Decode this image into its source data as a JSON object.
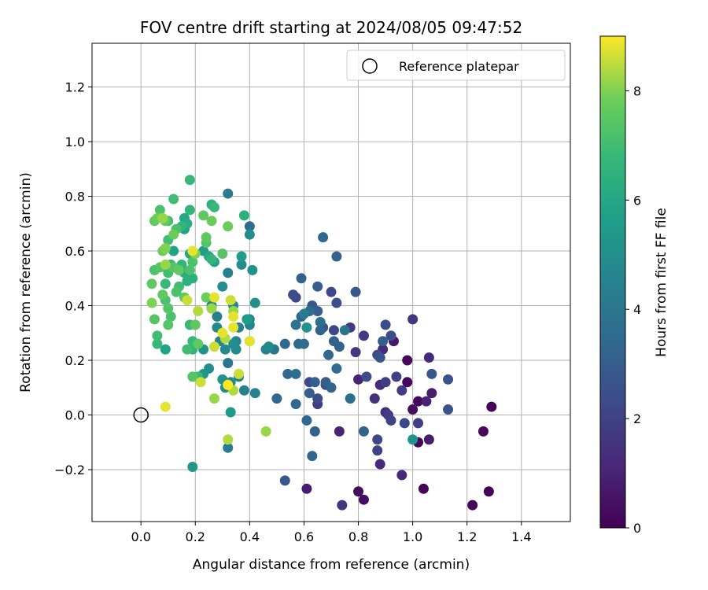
{
  "chart_data": {
    "type": "scatter",
    "title": "FOV centre drift starting at 2024/08/05 09:47:52",
    "xlabel": "Angular distance from reference (arcmin)",
    "ylabel": "Rotation from reference (arcmin)",
    "xlim": [
      -0.18,
      1.58
    ],
    "ylim": [
      -0.39,
      1.36
    ],
    "xticks": [
      0.0,
      0.2,
      0.4,
      0.6,
      0.8,
      1.0,
      1.2,
      1.4
    ],
    "xtick_labels": [
      "0.0",
      "0.2",
      "0.4",
      "0.6",
      "0.8",
      "1.0",
      "1.2",
      "1.4"
    ],
    "yticks": [
      -0.2,
      0.0,
      0.2,
      0.4,
      0.6,
      0.8,
      1.0,
      1.2
    ],
    "ytick_labels": [
      "−0.2",
      "0.0",
      "0.2",
      "0.4",
      "0.6",
      "0.8",
      "1.0",
      "1.2"
    ],
    "grid": true,
    "legend": {
      "position": "top-right",
      "label": "Reference platepar"
    },
    "reference_point": [
      0.0,
      0.0
    ],
    "colorbar": {
      "label": "Hours from first FF file",
      "range": [
        0,
        9
      ],
      "ticks": [
        0,
        2,
        4,
        6,
        8
      ],
      "tick_labels": [
        "0",
        "2",
        "4",
        "6",
        "8"
      ],
      "colormap": "viridis"
    },
    "points": [
      [
        1.29,
        0.03,
        0.1
      ],
      [
        1.28,
        -0.28,
        0.1
      ],
      [
        1.26,
        -0.06,
        0.2
      ],
      [
        1.22,
        -0.33,
        0.2
      ],
      [
        1.13,
        0.13,
        2.6
      ],
      [
        1.13,
        0.02,
        2.6
      ],
      [
        1.07,
        0.15,
        2.8
      ],
      [
        1.07,
        0.08,
        0.8
      ],
      [
        1.06,
        0.21,
        1.2
      ],
      [
        1.06,
        -0.09,
        0.8
      ],
      [
        1.05,
        0.05,
        1.0
      ],
      [
        1.04,
        -0.27,
        0.1
      ],
      [
        1.02,
        0.05,
        0.2
      ],
      [
        1.02,
        -0.1,
        0.2
      ],
      [
        1.02,
        -0.03,
        1.8
      ],
      [
        1.0,
        0.35,
        1.6
      ],
      [
        1.0,
        0.02,
        0.4
      ],
      [
        1.0,
        -0.09,
        5.2
      ],
      [
        0.98,
        0.2,
        0.2
      ],
      [
        0.98,
        0.12,
        0.2
      ],
      [
        0.97,
        -0.03,
        2.2
      ],
      [
        0.96,
        0.09,
        1.8
      ],
      [
        0.96,
        -0.22,
        1.2
      ],
      [
        0.94,
        0.14,
        2.0
      ],
      [
        0.93,
        0.27,
        0.6
      ],
      [
        0.92,
        0.29,
        2.4
      ],
      [
        0.92,
        -0.02,
        2.0
      ],
      [
        0.91,
        0.0,
        1.8
      ],
      [
        0.9,
        0.12,
        1.8
      ],
      [
        0.9,
        0.01,
        1.4
      ],
      [
        0.9,
        0.33,
        2.4
      ],
      [
        0.89,
        0.27,
        3.0
      ],
      [
        0.89,
        0.24,
        1.2
      ],
      [
        0.88,
        0.21,
        2.6
      ],
      [
        0.88,
        0.11,
        1.2
      ],
      [
        0.88,
        -0.18,
        1.2
      ],
      [
        0.87,
        -0.09,
        2.2
      ],
      [
        0.87,
        -0.13,
        2.0
      ],
      [
        0.87,
        0.22,
        2.4
      ],
      [
        0.86,
        0.06,
        1.4
      ],
      [
        0.83,
        0.14,
        2.4
      ],
      [
        0.82,
        0.29,
        1.6
      ],
      [
        0.82,
        -0.06,
        3.2
      ],
      [
        0.82,
        -0.31,
        0.4
      ],
      [
        0.8,
        -0.28,
        0.4
      ],
      [
        0.8,
        0.13,
        1.0
      ],
      [
        0.79,
        0.45,
        2.8
      ],
      [
        0.79,
        0.23,
        1.6
      ],
      [
        0.77,
        0.32,
        1.8
      ],
      [
        0.77,
        0.06,
        3.6
      ],
      [
        0.75,
        0.31,
        4.0
      ],
      [
        0.74,
        -0.33,
        1.6
      ],
      [
        0.73,
        -0.06,
        1.0
      ],
      [
        0.73,
        0.25,
        3.2
      ],
      [
        0.72,
        0.41,
        2.4
      ],
      [
        0.72,
        0.58,
        3.2
      ],
      [
        0.72,
        0.17,
        3.6
      ],
      [
        0.71,
        0.27,
        3.2
      ],
      [
        0.71,
        0.31,
        2.2
      ],
      [
        0.7,
        0.45,
        2.2
      ],
      [
        0.7,
        0.1,
        3.2
      ],
      [
        0.69,
        0.22,
        3.4
      ],
      [
        0.68,
        0.12,
        3.0
      ],
      [
        0.68,
        0.11,
        2.4
      ],
      [
        0.67,
        0.65,
        3.4
      ],
      [
        0.67,
        0.32,
        2.6
      ],
      [
        0.66,
        0.31,
        3.2
      ],
      [
        0.66,
        0.34,
        3.6
      ],
      [
        0.65,
        0.06,
        2.4
      ],
      [
        0.65,
        0.47,
        3.0
      ],
      [
        0.65,
        0.04,
        1.8
      ],
      [
        0.65,
        0.38,
        3.0
      ],
      [
        0.64,
        -0.06,
        3.2
      ],
      [
        0.64,
        0.12,
        3.0
      ],
      [
        0.63,
        0.4,
        2.8
      ],
      [
        0.63,
        -0.15,
        3.4
      ],
      [
        0.62,
        0.08,
        3.0
      ],
      [
        0.62,
        0.12,
        2.2
      ],
      [
        0.62,
        0.38,
        3.6
      ],
      [
        0.61,
        -0.02,
        3.4
      ],
      [
        0.61,
        -0.27,
        0.8
      ],
      [
        0.61,
        0.32,
        5.2
      ],
      [
        0.6,
        0.37,
        4.2
      ],
      [
        0.6,
        0.26,
        3.6
      ],
      [
        0.59,
        0.5,
        3.2
      ],
      [
        0.59,
        0.36,
        3.2
      ],
      [
        0.58,
        0.26,
        3.4
      ],
      [
        0.57,
        0.43,
        2.2
      ],
      [
        0.57,
        0.33,
        3.8
      ],
      [
        0.57,
        0.04,
        3.4
      ],
      [
        0.57,
        0.15,
        3.6
      ],
      [
        0.56,
        0.44,
        2.4
      ],
      [
        0.54,
        0.15,
        3.4
      ],
      [
        0.53,
        -0.24,
        2.8
      ],
      [
        0.53,
        0.26,
        3.4
      ],
      [
        0.5,
        0.06,
        3.4
      ],
      [
        0.49,
        0.24,
        3.8
      ],
      [
        0.47,
        0.25,
        4.8
      ],
      [
        0.46,
        0.24,
        4.4
      ],
      [
        0.46,
        -0.06,
        8.2
      ],
      [
        0.4,
        0.69,
        3.6
      ],
      [
        0.4,
        0.66,
        5.0
      ],
      [
        0.4,
        0.27,
        7.4
      ],
      [
        0.4,
        0.27,
        8.8
      ],
      [
        0.42,
        0.08,
        4.4
      ],
      [
        0.42,
        0.41,
        5.0
      ],
      [
        0.41,
        0.53,
        5.2
      ],
      [
        0.4,
        0.35,
        4.8
      ],
      [
        0.4,
        0.33,
        4.6
      ],
      [
        0.39,
        0.35,
        5.6
      ],
      [
        0.38,
        0.73,
        6.4
      ],
      [
        0.38,
        0.09,
        4.4
      ],
      [
        0.37,
        0.58,
        5.6
      ],
      [
        0.37,
        0.55,
        5.0
      ],
      [
        0.36,
        0.32,
        4.4
      ],
      [
        0.36,
        0.14,
        4.4
      ],
      [
        0.36,
        0.15,
        8.6
      ],
      [
        0.35,
        0.27,
        4.6
      ],
      [
        0.35,
        0.24,
        4.8
      ],
      [
        0.34,
        0.4,
        4.8
      ],
      [
        0.34,
        0.38,
        8.2
      ],
      [
        0.34,
        0.26,
        5.0
      ],
      [
        0.34,
        0.09,
        8.4
      ],
      [
        0.34,
        0.32,
        8.8
      ],
      [
        0.34,
        0.36,
        8.8
      ],
      [
        0.33,
        0.42,
        8.6
      ],
      [
        0.33,
        0.12,
        4.8
      ],
      [
        0.32,
        0.81,
        4.2
      ],
      [
        0.32,
        0.69,
        7.8
      ],
      [
        0.32,
        0.52,
        4.4
      ],
      [
        0.32,
        0.19,
        4.0
      ],
      [
        0.32,
        0.11,
        9.0
      ],
      [
        0.32,
        -0.09,
        8.4
      ],
      [
        0.32,
        -0.12,
        4.2
      ],
      [
        0.33,
        0.01,
        5.4
      ],
      [
        0.31,
        0.28,
        8.4
      ],
      [
        0.31,
        0.1,
        5.0
      ],
      [
        0.31,
        0.24,
        4.8
      ],
      [
        0.3,
        0.59,
        7.4
      ],
      [
        0.3,
        0.47,
        5.0
      ],
      [
        0.3,
        0.3,
        8.8
      ],
      [
        0.3,
        0.13,
        5.2
      ],
      [
        0.29,
        0.27,
        4.4
      ],
      [
        0.28,
        0.36,
        4.4
      ],
      [
        0.28,
        0.32,
        4.8
      ],
      [
        0.27,
        0.76,
        6.8
      ],
      [
        0.27,
        0.56,
        5.8
      ],
      [
        0.27,
        0.43,
        8.8
      ],
      [
        0.27,
        0.25,
        8.6
      ],
      [
        0.27,
        0.06,
        8.2
      ],
      [
        0.26,
        0.77,
        6.4
      ],
      [
        0.26,
        0.71,
        7.8
      ],
      [
        0.26,
        0.57,
        6.6
      ],
      [
        0.26,
        0.4,
        4.6
      ],
      [
        0.26,
        0.39,
        7.0
      ],
      [
        0.26,
        0.39,
        8.2
      ],
      [
        0.25,
        0.58,
        6.0
      ],
      [
        0.25,
        0.17,
        5.0
      ],
      [
        0.24,
        0.65,
        7.6
      ],
      [
        0.24,
        0.63,
        7.4
      ],
      [
        0.24,
        0.43,
        7.8
      ],
      [
        0.23,
        0.6,
        5.6
      ],
      [
        0.23,
        0.73,
        7.6
      ],
      [
        0.23,
        0.15,
        5.4
      ],
      [
        0.23,
        0.24,
        5.2
      ],
      [
        0.22,
        0.12,
        8.6
      ],
      [
        0.21,
        0.38,
        8.4
      ],
      [
        0.21,
        0.26,
        7.6
      ],
      [
        0.21,
        0.14,
        6.8
      ],
      [
        0.2,
        0.59,
        8.0
      ],
      [
        0.2,
        0.33,
        7.6
      ],
      [
        0.19,
        0.27,
        6.8
      ],
      [
        0.19,
        0.24,
        6.6
      ],
      [
        0.19,
        0.6,
        8.8
      ],
      [
        0.19,
        0.56,
        7.2
      ],
      [
        0.19,
        0.5,
        6.4
      ],
      [
        0.19,
        0.14,
        7.4
      ],
      [
        0.19,
        -0.19,
        5.4
      ],
      [
        0.18,
        0.86,
        6.8
      ],
      [
        0.18,
        0.75,
        6.6
      ],
      [
        0.18,
        0.59,
        6.0
      ],
      [
        0.18,
        0.53,
        7.2
      ],
      [
        0.18,
        0.33,
        6.8
      ],
      [
        0.17,
        0.42,
        8.6
      ],
      [
        0.17,
        0.24,
        7.0
      ],
      [
        0.17,
        0.7,
        6.2
      ],
      [
        0.17,
        0.49,
        6.4
      ],
      [
        0.16,
        0.72,
        6.0
      ],
      [
        0.16,
        0.68,
        5.8
      ],
      [
        0.16,
        0.52,
        6.2
      ],
      [
        0.16,
        0.43,
        7.6
      ],
      [
        0.15,
        0.55,
        6.6
      ],
      [
        0.15,
        0.69,
        6.6
      ],
      [
        0.14,
        0.53,
        7.6
      ],
      [
        0.14,
        0.47,
        7.0
      ],
      [
        0.13,
        0.68,
        7.2
      ],
      [
        0.13,
        0.45,
        7.2
      ],
      [
        0.12,
        0.79,
        7.0
      ],
      [
        0.12,
        0.6,
        5.8
      ],
      [
        0.12,
        0.66,
        7.8
      ],
      [
        0.12,
        0.54,
        7.4
      ],
      [
        0.11,
        0.55,
        6.8
      ],
      [
        0.11,
        0.36,
        7.2
      ],
      [
        0.1,
        0.71,
        7.0
      ],
      [
        0.1,
        0.64,
        7.0
      ],
      [
        0.1,
        0.39,
        7.4
      ],
      [
        0.1,
        0.33,
        7.4
      ],
      [
        0.1,
        0.52,
        7.0
      ],
      [
        0.09,
        0.24,
        5.8
      ],
      [
        0.09,
        0.71,
        7.6
      ],
      [
        0.09,
        0.61,
        8.0
      ],
      [
        0.09,
        0.55,
        8.2
      ],
      [
        0.09,
        0.48,
        6.8
      ],
      [
        0.09,
        0.42,
        7.2
      ],
      [
        0.09,
        0.03,
        8.8
      ],
      [
        0.08,
        0.72,
        8.2
      ],
      [
        0.08,
        0.6,
        7.8
      ],
      [
        0.08,
        0.44,
        7.6
      ],
      [
        0.07,
        0.54,
        7.4
      ],
      [
        0.07,
        0.75,
        7.2
      ],
      [
        0.06,
        0.72,
        7.8
      ],
      [
        0.06,
        0.29,
        7.0
      ],
      [
        0.06,
        0.26,
        6.8
      ],
      [
        0.05,
        0.35,
        7.4
      ],
      [
        0.05,
        0.53,
        7.2
      ],
      [
        0.05,
        0.71,
        7.6
      ],
      [
        0.04,
        0.48,
        7.6
      ],
      [
        0.04,
        0.41,
        8.0
      ]
    ]
  }
}
